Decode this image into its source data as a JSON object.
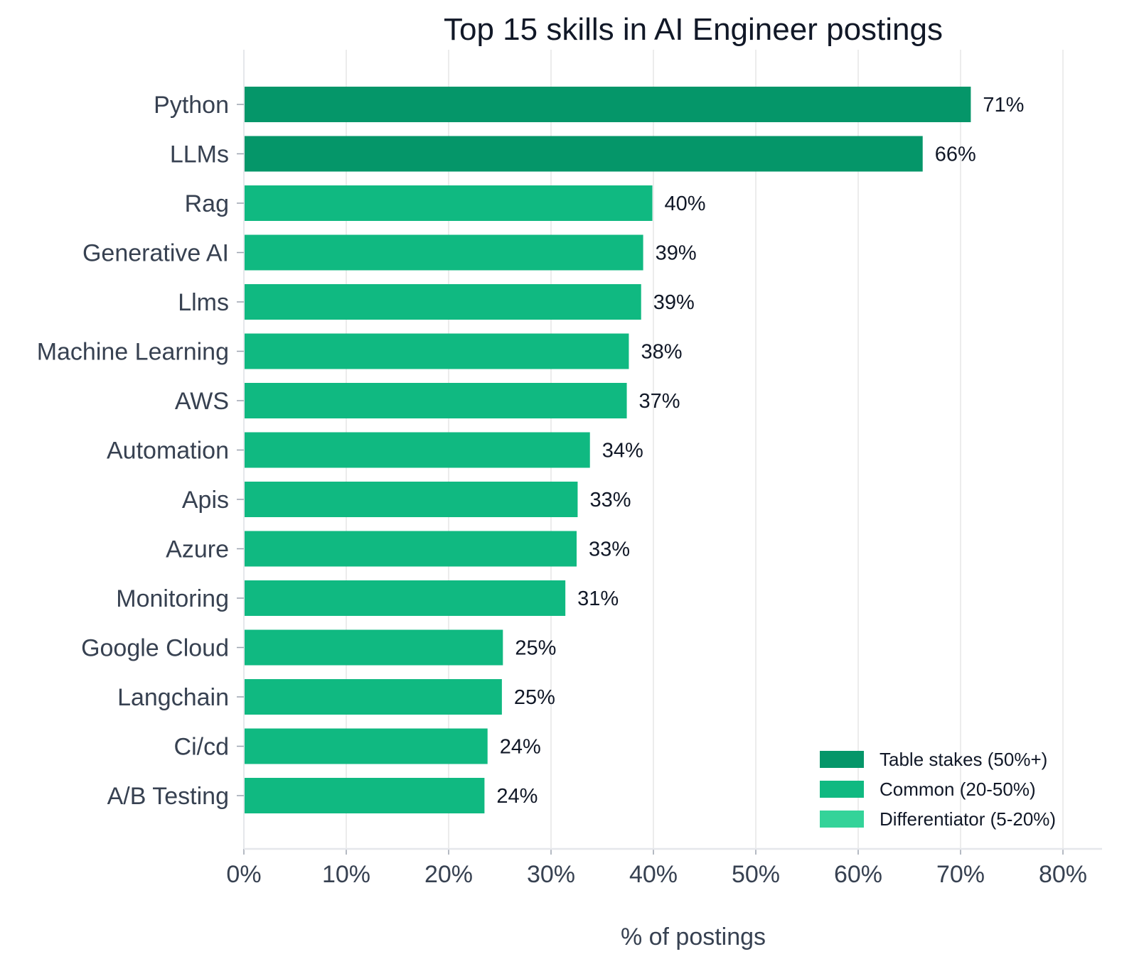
{
  "chart_data": {
    "type": "bar",
    "orientation": "horizontal",
    "title": "Top 15 skills in AI Engineer postings",
    "xlabel": "% of postings",
    "ylabel": "",
    "xlim": [
      0,
      80
    ],
    "x_ticks": [
      "0%",
      "10%",
      "20%",
      "30%",
      "40%",
      "50%",
      "60%",
      "70%",
      "80%"
    ],
    "x_tick_values": [
      0,
      10,
      20,
      30,
      40,
      50,
      60,
      70,
      80
    ],
    "grid": "vertical",
    "legend_position": "bottom-right",
    "categories": [
      "Python",
      "LLMs",
      "Rag",
      "Generative AI",
      "Llms",
      "Machine Learning",
      "AWS",
      "Automation",
      "Apis",
      "Azure",
      "Monitoring",
      "Google Cloud",
      "Langchain",
      "Ci/cd",
      "A/B Testing"
    ],
    "values": [
      71,
      66.3,
      39.9,
      39,
      38.8,
      37.6,
      37.4,
      33.8,
      32.6,
      32.5,
      31.4,
      25.3,
      25.2,
      23.8,
      23.5
    ],
    "labels": [
      "71%",
      "66%",
      "40%",
      "39%",
      "39%",
      "38%",
      "37%",
      "34%",
      "33%",
      "33%",
      "31%",
      "25%",
      "25%",
      "24%",
      "24%"
    ],
    "tiers": [
      "table",
      "table",
      "common",
      "common",
      "common",
      "common",
      "common",
      "common",
      "common",
      "common",
      "common",
      "common",
      "common",
      "common",
      "common"
    ],
    "legend": [
      {
        "key": "table",
        "label": "Table stakes (50%+)",
        "color": "#059669"
      },
      {
        "key": "common",
        "label": "Common (20-50%)",
        "color": "#10b981"
      },
      {
        "key": "diff",
        "label": "Differentiator (5-20%)",
        "color": "#34d399"
      }
    ]
  }
}
